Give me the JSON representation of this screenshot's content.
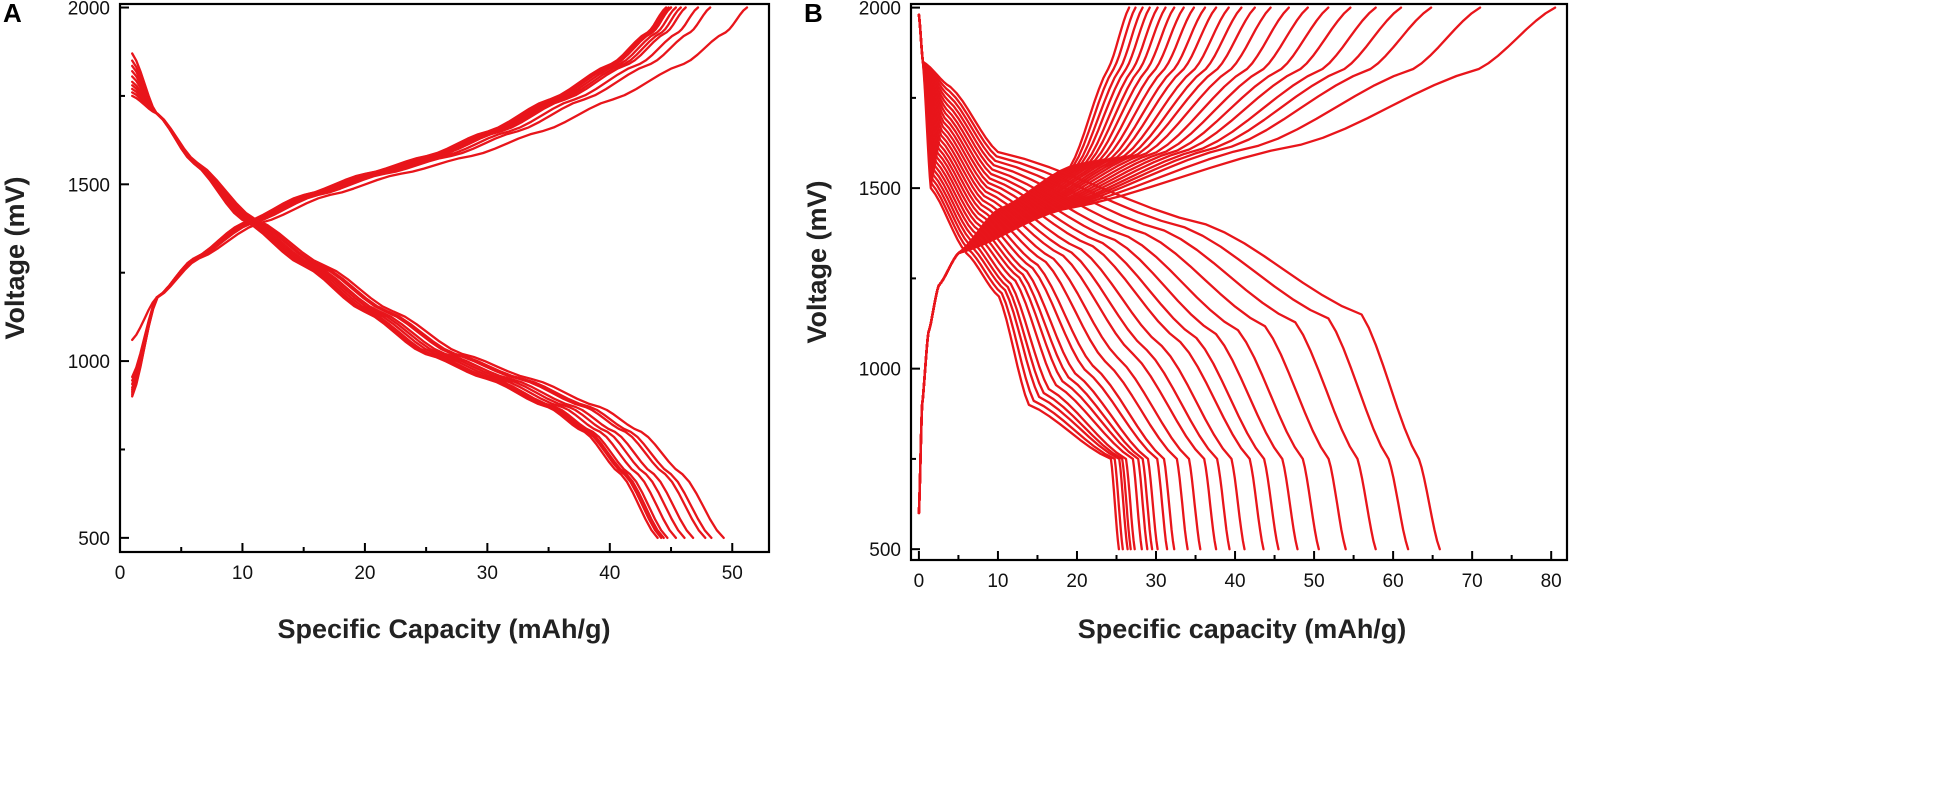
{
  "chart_data": [
    {
      "panel_label": "A",
      "type": "line",
      "xlabel": "Specific Capacity (mAh/g)",
      "ylabel": "Voltage (mV)",
      "xlim": [
        0,
        53
      ],
      "ylim": [
        460,
        2010
      ],
      "x_ticks": [
        0,
        10,
        20,
        30,
        40,
        50
      ],
      "y_ticks": [
        500,
        1000,
        1500,
        2000
      ],
      "grid": false,
      "legend": "none",
      "series_color": "#e8151b",
      "cycles": 10,
      "charge_end_capacities": [
        44.6,
        45.0,
        45.4,
        45.8,
        46.2,
        47.2,
        48.2,
        51.2,
        45.0,
        44.8
      ],
      "discharge_end_capacities": [
        43.9,
        44.2,
        44.7,
        45.4,
        46.1,
        46.8,
        47.8,
        48.3,
        49.3,
        44.4
      ],
      "charge_start_voltage": [
        1060,
        955,
        945,
        935,
        925,
        920,
        915,
        910,
        905,
        900
      ],
      "discharge_start_voltage": [
        1870,
        1850,
        1835,
        1820,
        1805,
        1790,
        1780,
        1770,
        1760,
        1750
      ],
      "cross_voltage": 1390,
      "cross_capacity": 10
    },
    {
      "panel_label": "B",
      "type": "line",
      "xlabel": "Specific capacity (mAh/g)",
      "ylabel": "Voltage (mV)",
      "xlim": [
        -1,
        82
      ],
      "ylim": [
        470,
        2010
      ],
      "x_ticks": [
        0,
        10,
        20,
        30,
        40,
        50,
        60,
        70,
        80
      ],
      "y_ticks": [
        500,
        1000,
        1500,
        2000
      ],
      "grid": false,
      "legend": "none",
      "series_color": "#e8151b",
      "cycles": 24,
      "charge_end_capacities": [
        80.5,
        71.0,
        64.8,
        61.0,
        57.8,
        54.6,
        51.8,
        49.2,
        46.8,
        44.5,
        42.5,
        40.8,
        39.2,
        37.6,
        36.2,
        34.8,
        33.5,
        32.3,
        31.2,
        30.2,
        29.2,
        28.3,
        27.4,
        26.6
      ],
      "discharge_end_capacities": [
        65.9,
        61.9,
        57.8,
        54.0,
        50.6,
        47.9,
        45.5,
        43.6,
        41.2,
        39.3,
        37.6,
        35.6,
        34.0,
        32.3,
        31.4,
        30.2,
        29.5,
        28.9,
        28.2,
        27.3,
        26.8,
        26.4,
        25.8,
        25.3
      ],
      "charge_start_voltage": 600,
      "discharge_start_voltage": 1980,
      "charge_plateau_voltage": 1440,
      "discharge_knee_voltage": 1320,
      "discharge_knee_capacity": 6
    }
  ]
}
